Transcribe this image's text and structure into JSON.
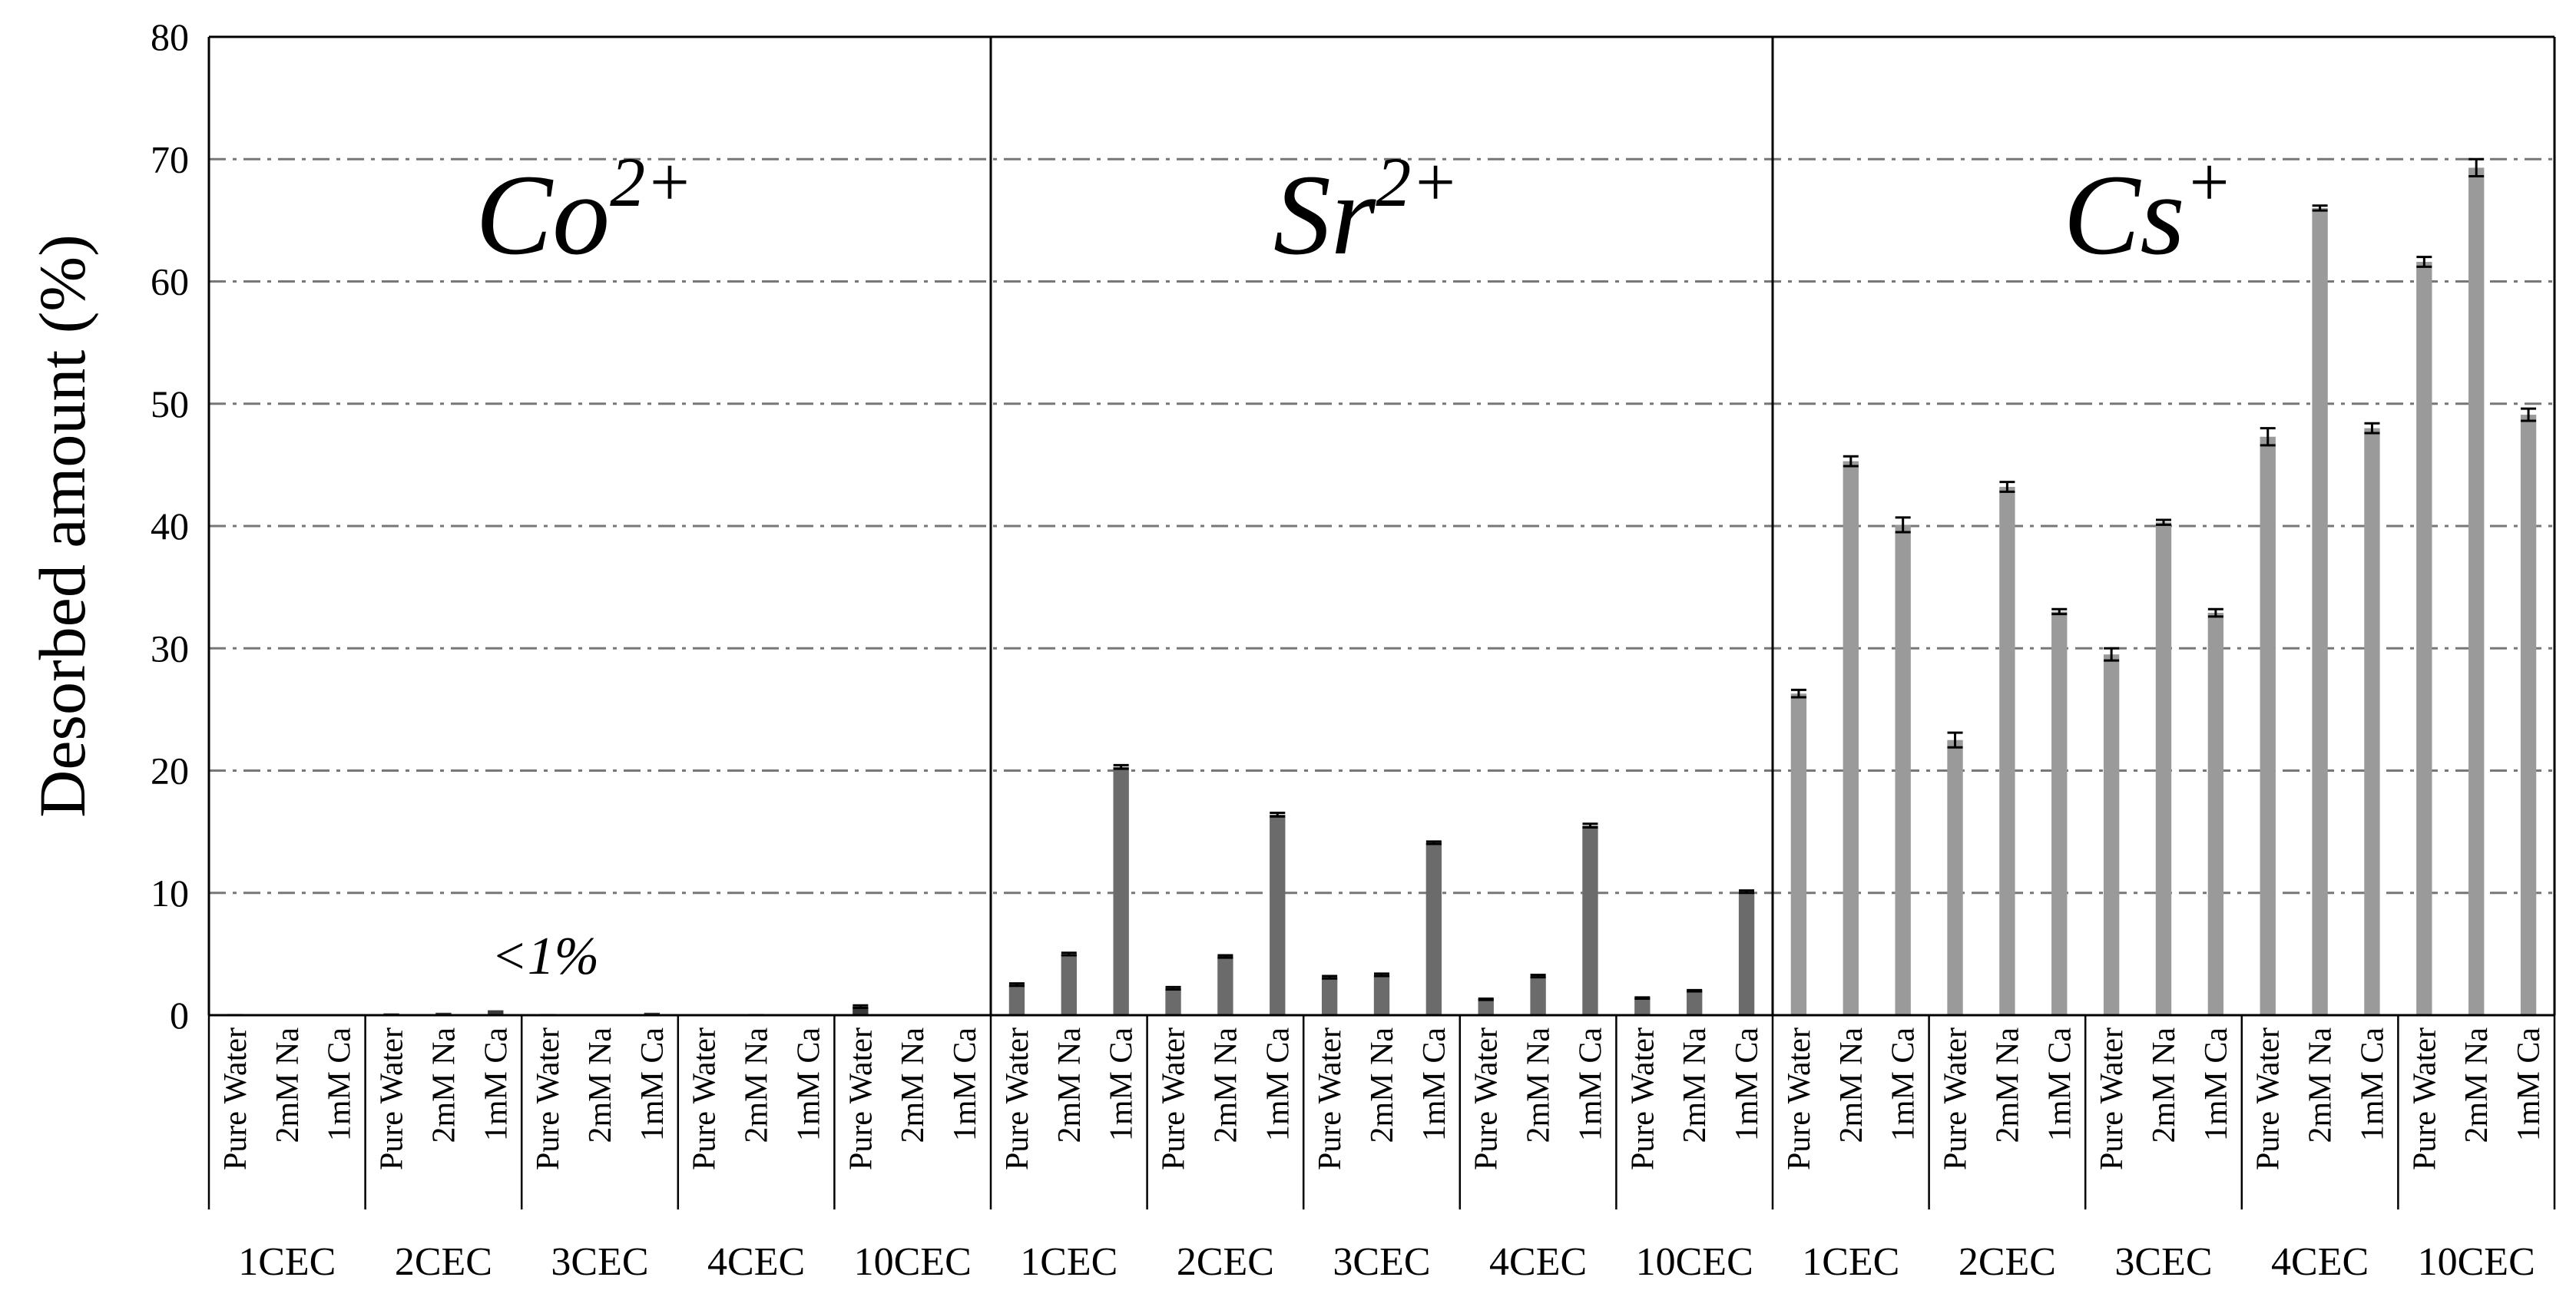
{
  "chart_data": {
    "type": "bar",
    "ylabel": "Desorbed amount (%)",
    "ylim": [
      0,
      80
    ],
    "yticks": [
      0,
      10,
      20,
      30,
      40,
      50,
      60,
      70,
      80
    ],
    "grid": "horizontal dash-dot",
    "conditions": [
      "Pure Water",
      "2mM Na",
      "1mM Ca"
    ],
    "groups": [
      "1CEC",
      "2CEC",
      "3CEC",
      "4CEC",
      "10CEC"
    ],
    "panels": [
      {
        "ion": "Co",
        "charge": "2+",
        "annotation": "<1%",
        "color": "#3a3a3a",
        "values": [
          [
            0.1,
            0.0,
            0.0
          ],
          [
            0.15,
            0.2,
            0.4
          ],
          [
            0.1,
            0.05,
            0.2
          ],
          [
            0.0,
            0.1,
            0.0
          ],
          [
            0.7,
            0.0,
            0.0
          ]
        ],
        "errors": [
          [
            0,
            0,
            0
          ],
          [
            0,
            0,
            0
          ],
          [
            0,
            0,
            0
          ],
          [
            0,
            0,
            0
          ],
          [
            0.1,
            0,
            0
          ]
        ]
      },
      {
        "ion": "Sr",
        "charge": "2+",
        "color": "#6b6b6b",
        "values": [
          [
            2.5,
            5.0,
            20.3
          ],
          [
            2.2,
            4.8,
            16.4
          ],
          [
            3.1,
            3.3,
            14.1
          ],
          [
            1.3,
            3.2,
            15.5
          ],
          [
            1.4,
            2.0,
            10.1
          ]
        ],
        "errors": [
          [
            0.1,
            0.1,
            0.15
          ],
          [
            0.1,
            0.1,
            0.15
          ],
          [
            0.1,
            0.1,
            0.1
          ],
          [
            0.05,
            0.1,
            0.15
          ],
          [
            0.05,
            0.05,
            0.1
          ]
        ]
      },
      {
        "ion": "Cs",
        "charge": "+",
        "color": "#9a9a9a",
        "values": [
          [
            26.3,
            45.3,
            40.1
          ],
          [
            22.5,
            43.2,
            33.0
          ],
          [
            29.5,
            40.3,
            32.9
          ],
          [
            47.3,
            66.0,
            48.0
          ],
          [
            61.6,
            69.3,
            49.1
          ]
        ],
        "errors": [
          [
            0.3,
            0.4,
            0.6
          ],
          [
            0.6,
            0.4,
            0.2
          ],
          [
            0.5,
            0.2,
            0.3
          ],
          [
            0.7,
            0.2,
            0.4
          ],
          [
            0.4,
            0.7,
            0.5
          ]
        ]
      }
    ]
  }
}
